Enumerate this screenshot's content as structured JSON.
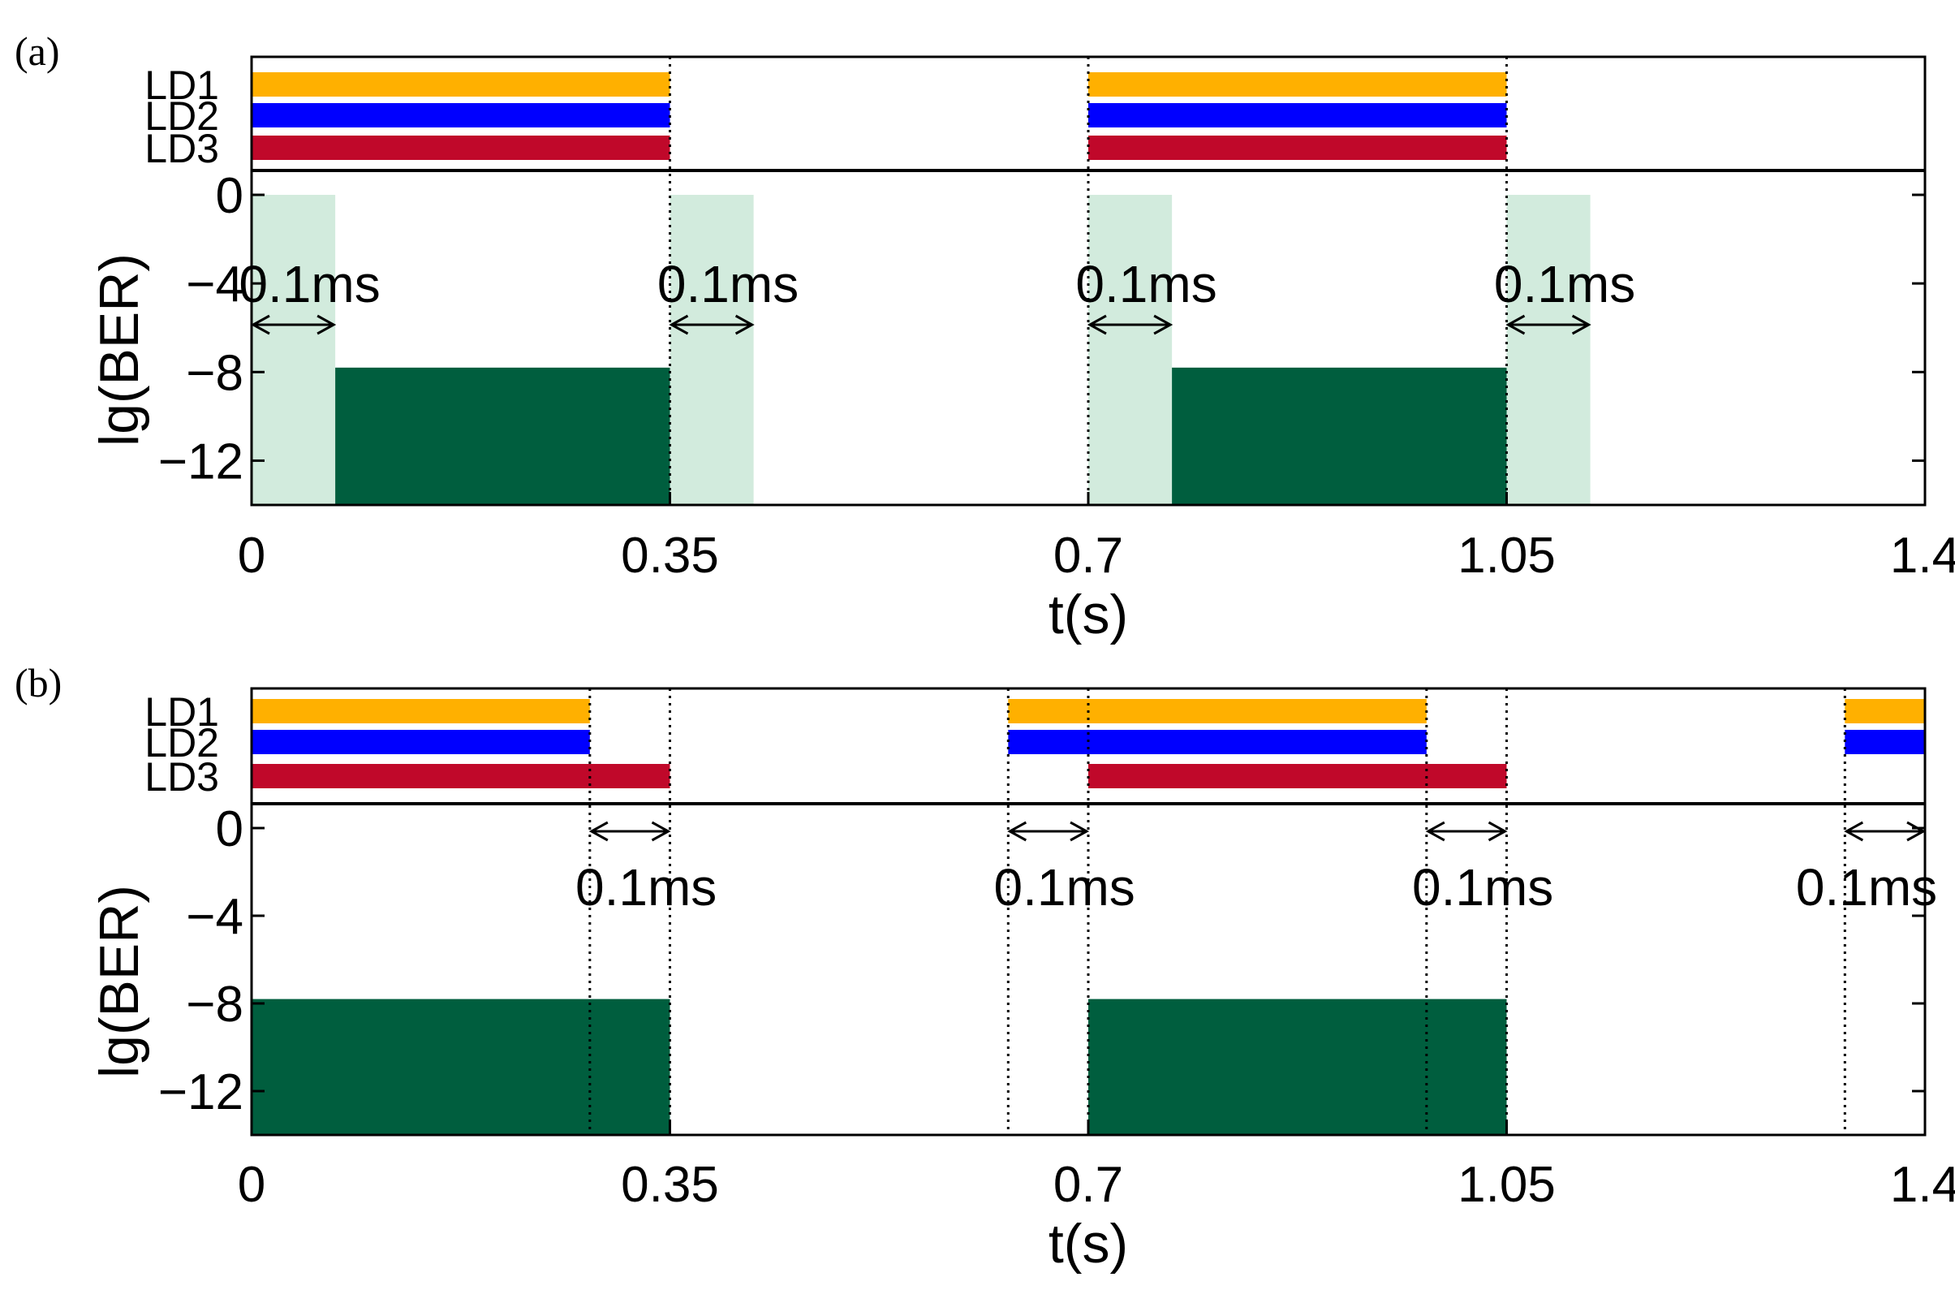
{
  "colors": {
    "LD1": "#FFB000",
    "LD2": "#0000FF",
    "LD3": "#C0082A",
    "ber_fill": "#005E3E",
    "transition_fill": "#D2EBDD"
  },
  "chart_data": [
    {
      "panel_label": "(a)",
      "type": "bar",
      "xlabel": "t(s)",
      "ylabel": "lg(BER)",
      "xlim": [
        0,
        1.4
      ],
      "ylim": [
        -14,
        0
      ],
      "xticks": [
        "0",
        "0.35",
        "0.7",
        "1.05",
        "1.4"
      ],
      "yticks": [
        "0",
        "−4",
        "−8",
        "−12"
      ],
      "ld_labels": [
        "LD1",
        "LD2",
        "LD3"
      ],
      "laser_on": [
        {
          "name": "LD1",
          "intervals": [
            [
              0,
              0.35
            ],
            [
              0.7,
              1.05
            ]
          ]
        },
        {
          "name": "LD2",
          "intervals": [
            [
              0,
              0.35
            ],
            [
              0.7,
              1.05
            ]
          ]
        },
        {
          "name": "LD3",
          "intervals": [
            [
              0,
              0.35
            ],
            [
              0.7,
              1.05
            ]
          ]
        }
      ],
      "ber_blocks": [
        {
          "t_start": 0.07,
          "t_end": 0.35,
          "lg_ber": -7.8
        },
        {
          "t_start": 0.77,
          "t_end": 1.05,
          "lg_ber": -7.8
        }
      ],
      "transition_windows": [
        [
          0,
          0.07
        ],
        [
          0.35,
          0.42
        ],
        [
          0.7,
          0.77
        ],
        [
          1.05,
          1.12
        ]
      ],
      "annotations": [
        {
          "text": "0.1ms",
          "t_start": 0,
          "t_end": 0.07
        },
        {
          "text": "0.1ms",
          "t_start": 0.35,
          "t_end": 0.42
        },
        {
          "text": "0.1ms",
          "t_start": 0.7,
          "t_end": 0.77
        },
        {
          "text": "0.1ms",
          "t_start": 1.05,
          "t_end": 1.12
        }
      ],
      "dotted_lines": [
        0.35,
        0.7,
        1.05
      ]
    },
    {
      "panel_label": "(b)",
      "type": "bar",
      "xlabel": "t(s)",
      "ylabel": "lg(BER)",
      "xlim": [
        0,
        1.4
      ],
      "ylim": [
        -14,
        0
      ],
      "xticks": [
        "0",
        "0.35",
        "0.7",
        "1.05",
        "1.4"
      ],
      "yticks": [
        "0",
        "−4",
        "−8",
        "−12"
      ],
      "ld_labels": [
        "LD1",
        "LD2",
        "LD3"
      ],
      "laser_on": [
        {
          "name": "LD1",
          "intervals": [
            [
              0,
              0.283
            ],
            [
              0.633,
              0.983
            ],
            [
              1.333,
              1.4
            ]
          ]
        },
        {
          "name": "LD2",
          "intervals": [
            [
              0,
              0.283
            ],
            [
              0.633,
              0.983
            ],
            [
              1.333,
              1.4
            ]
          ]
        },
        {
          "name": "LD3",
          "intervals": [
            [
              0,
              0.35
            ],
            [
              0.7,
              1.05
            ]
          ]
        }
      ],
      "ber_blocks": [
        {
          "t_start": 0,
          "t_end": 0.35,
          "lg_ber": -7.8
        },
        {
          "t_start": 0.7,
          "t_end": 1.05,
          "lg_ber": -7.8
        }
      ],
      "transition_windows": [],
      "annotations": [
        {
          "text": "0.1ms",
          "t_start": 0.283,
          "t_end": 0.35
        },
        {
          "text": "0.1ms",
          "t_start": 0.633,
          "t_end": 0.7
        },
        {
          "text": "0.1ms",
          "t_start": 0.983,
          "t_end": 1.05
        },
        {
          "text": "0.1ms",
          "t_start": 1.333,
          "t_end": 1.4
        }
      ],
      "dotted_lines": [
        0.283,
        0.35,
        0.633,
        0.7,
        0.983,
        1.05,
        1.333
      ]
    }
  ]
}
